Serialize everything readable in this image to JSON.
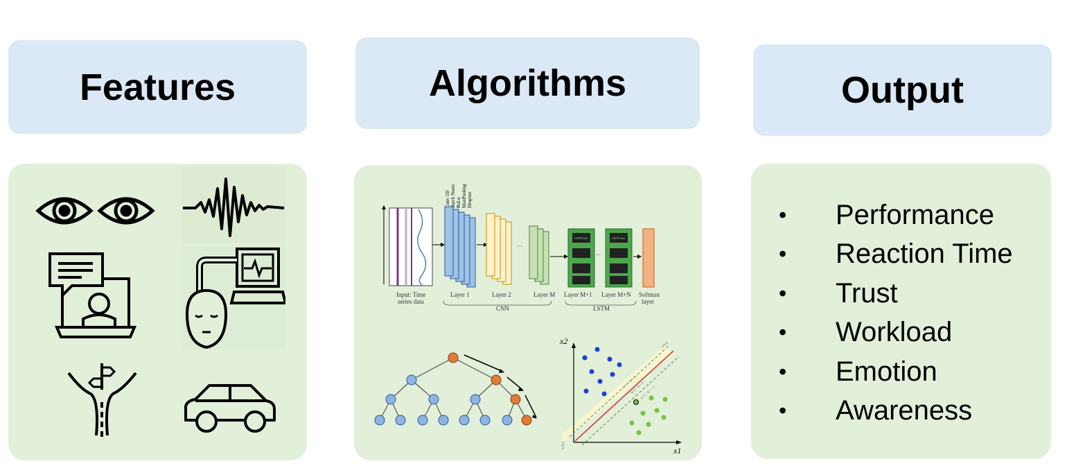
{
  "headers": {
    "features": "Features",
    "algorithms": "Algorithms",
    "output": "Output"
  },
  "feature_icons": [
    "eye-tracking-icon",
    "physiological-signal-icon",
    "video-conference-icon",
    "brain-monitor-icon",
    "road-decision-icon",
    "car-icon"
  ],
  "cnn_lstm": {
    "conv_labels": [
      "Conv 1D",
      "Batch Norm",
      "ReLu",
      "MaxPooling",
      "Dropout"
    ],
    "lstm_unit": "LSTM Unit",
    "layers": [
      {
        "line1": "Input: Time",
        "line2": "series data"
      },
      {
        "line1": "Layer 1",
        "line2": ""
      },
      {
        "line1": "Layer 2",
        "line2": ""
      },
      {
        "line1": "Layer M",
        "line2": ""
      },
      {
        "line1": "Layer M+1",
        "line2": ""
      },
      {
        "line1": "Layer M+N",
        "line2": ""
      },
      {
        "line1": "Softmax",
        "line2": "layer"
      }
    ],
    "group_cnn": "CNN",
    "group_lstm": "LSTM"
  },
  "svm": {
    "x_axis": "x1",
    "y_axis": "x2",
    "line_labels": [
      "w·x − b = 1",
      "w·x − b = 0",
      "w·x − b = −1"
    ],
    "margin_label": "2/||w||",
    "offset_label": "b/||w||"
  },
  "outputs": [
    "Performance",
    "Reaction Time",
    "Trust",
    "Workload",
    "Emotion",
    "Awareness"
  ],
  "colors": {
    "header_bg": "#dbe8f5",
    "panel_bg": "#e2efd9",
    "tree_blue": "#8eb4e3",
    "tree_orange": "#e07b39",
    "svm_blue": "#1f3fd6",
    "svm_green": "#7cc242",
    "cnn_blue": "#9dc3e6",
    "cnn_yellow": "#fff2cc",
    "cnn_green": "#c5e0b4",
    "lstm_green": "#4ca64c",
    "softmax": "#f4b183"
  }
}
